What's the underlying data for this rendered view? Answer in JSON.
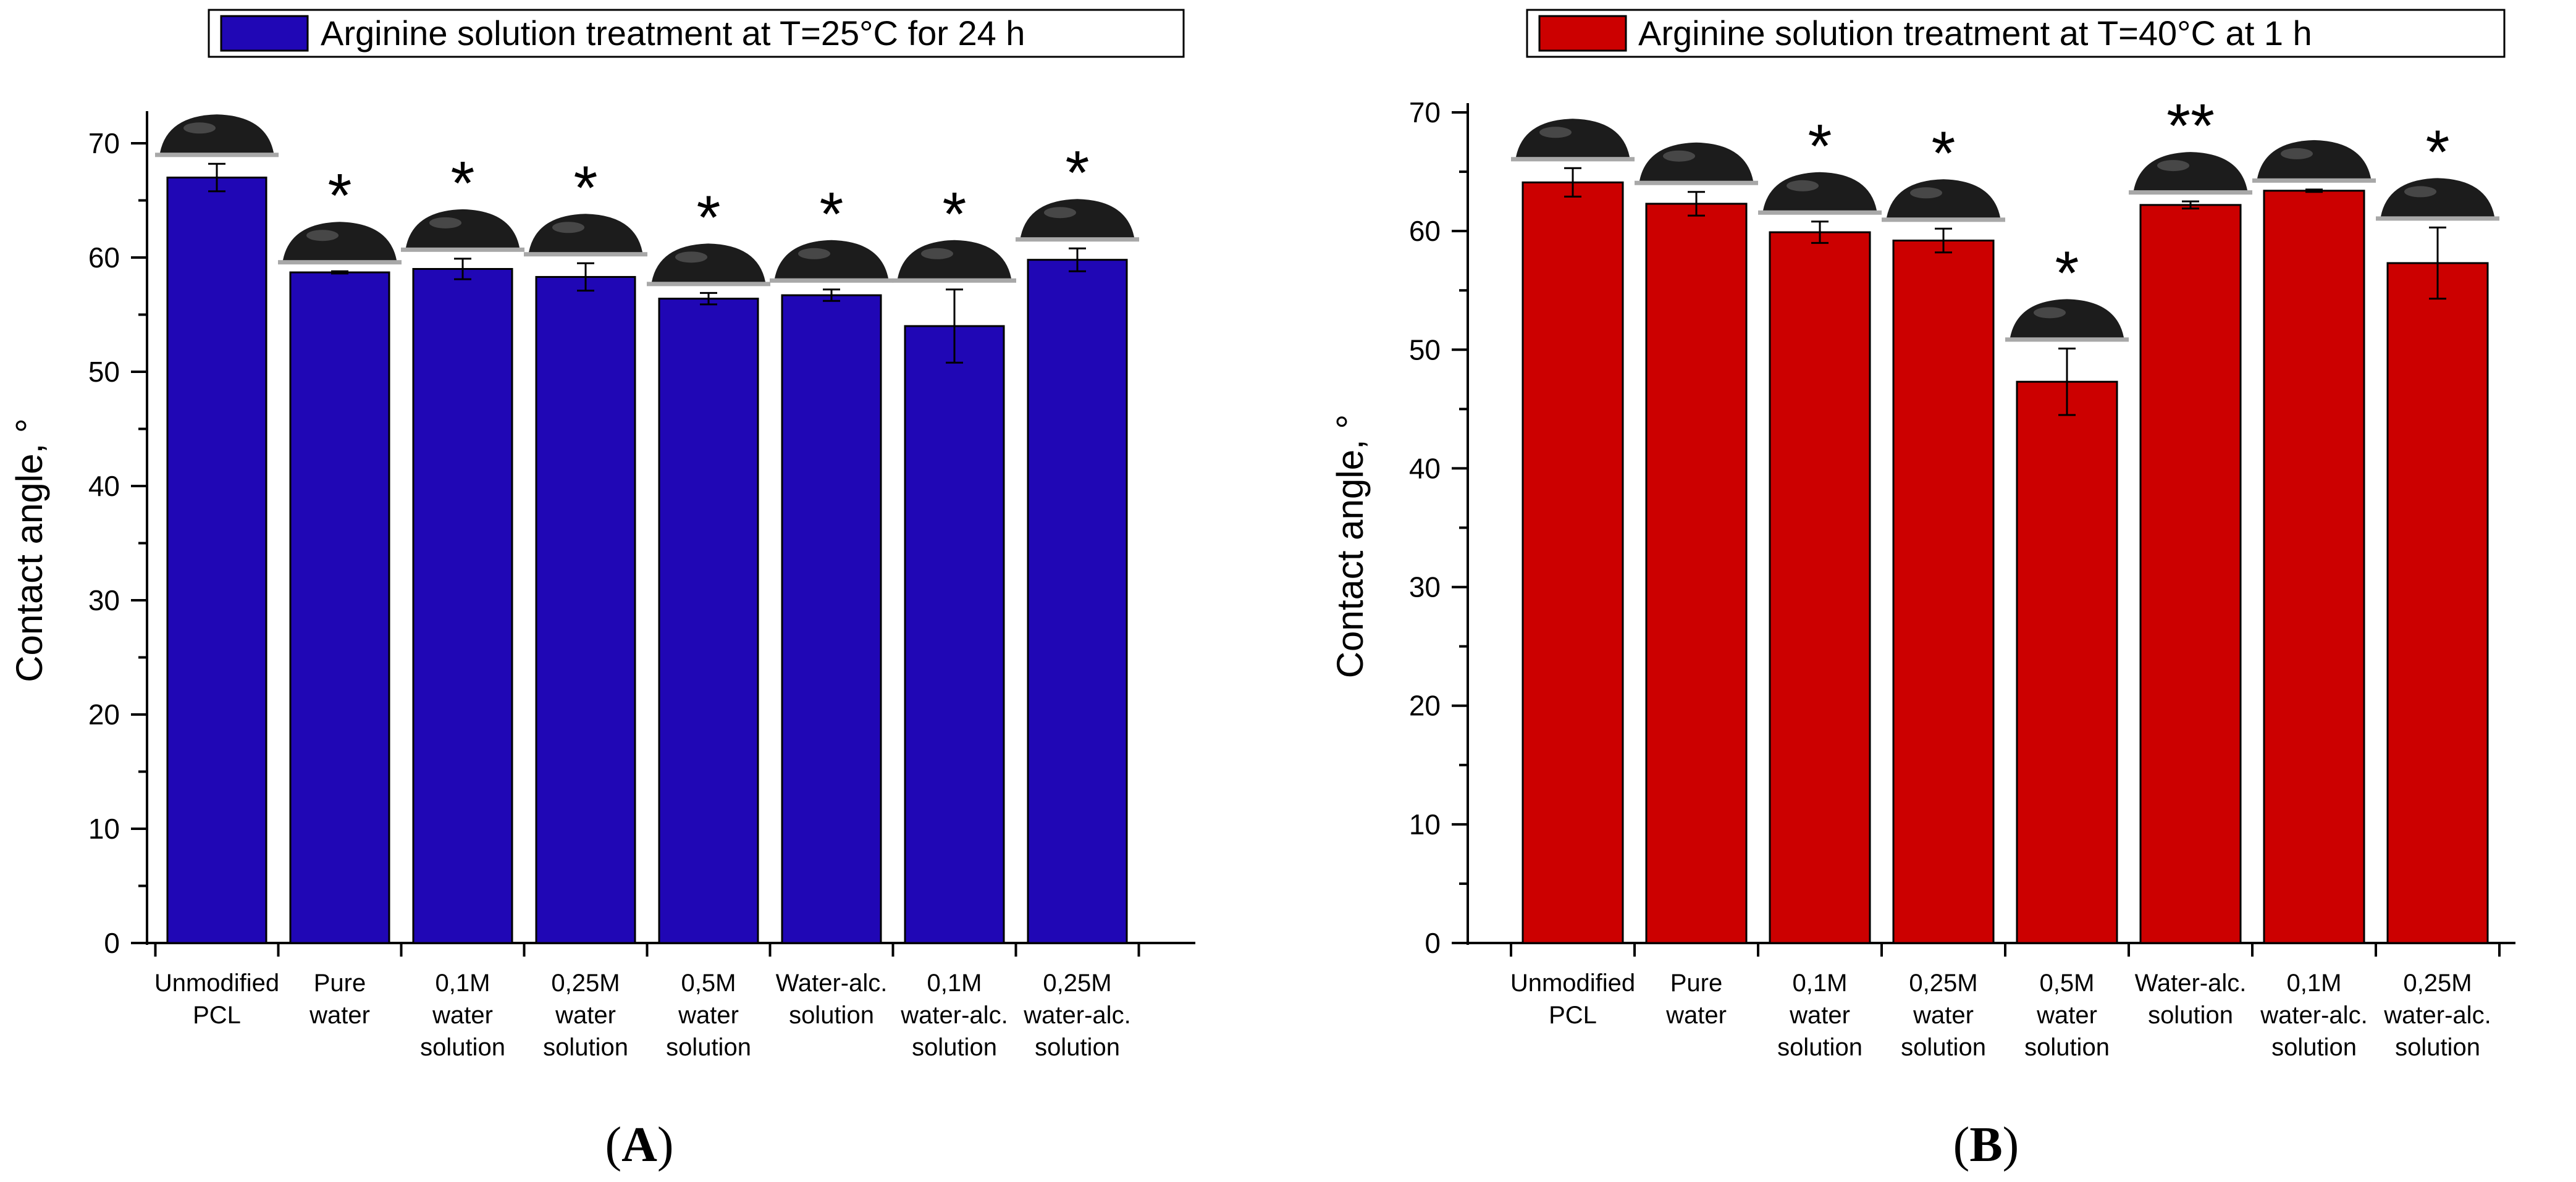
{
  "chart_data": [
    {
      "type": "bar",
      "panel_label": "A",
      "legend_label": "Arginine solution treatment at T=25°C for 24 h",
      "legend_position": "top",
      "ylabel": "Contact angle, °",
      "xlabel": "",
      "ylim": [
        0,
        72
      ],
      "yticks": [
        0,
        10,
        20,
        30,
        40,
        50,
        60,
        70
      ],
      "grid": false,
      "bar_color": "#2007B5",
      "categories": [
        [
          "Unmodified",
          "PCL"
        ],
        [
          "Pure",
          "water"
        ],
        [
          "0,1M",
          "water",
          "solution"
        ],
        [
          "0,25M",
          "water",
          "solution"
        ],
        [
          "0,5M",
          "water",
          "solution"
        ],
        [
          "Water-alc.",
          "solution"
        ],
        [
          "0,1M",
          "water-alc.",
          "solution"
        ],
        [
          "0,25M",
          "water-alc.",
          "solution"
        ]
      ],
      "values": [
        67.0,
        58.7,
        59.0,
        58.3,
        56.4,
        56.7,
        54.0,
        59.8
      ],
      "errors": [
        1.2,
        0.1,
        0.9,
        1.2,
        0.5,
        0.5,
        3.2,
        1.0
      ],
      "markers": [
        "",
        "*",
        "*",
        "*",
        "*",
        "*",
        "*",
        "*"
      ]
    },
    {
      "type": "bar",
      "panel_label": "B",
      "legend_label": "Arginine solution treatment at T=40°C at 1 h",
      "legend_position": "top",
      "ylabel": "Contact angle, °",
      "xlabel": "",
      "ylim": [
        0,
        70
      ],
      "yticks": [
        0,
        10,
        20,
        30,
        40,
        50,
        60,
        70
      ],
      "grid": false,
      "bar_color": "#CC0000",
      "categories": [
        [
          "Unmodified",
          "PCL"
        ],
        [
          "Pure",
          "water"
        ],
        [
          "0,1M",
          "water",
          "solution"
        ],
        [
          "0,25M",
          "water",
          "solution"
        ],
        [
          "0,5M",
          "water",
          "solution"
        ],
        [
          "Water-alc.",
          "solution"
        ],
        [
          "0,1M",
          "water-alc.",
          "solution"
        ],
        [
          "0,25M",
          "water-alc.",
          "solution"
        ]
      ],
      "values": [
        64.1,
        62.3,
        59.9,
        59.2,
        47.3,
        62.2,
        63.4,
        57.3
      ],
      "errors": [
        1.2,
        1.0,
        0.9,
        1.0,
        2.8,
        0.3,
        0.1,
        3.0
      ],
      "markers": [
        "",
        "",
        "*",
        "*",
        "*",
        "**",
        "",
        "*"
      ]
    }
  ]
}
